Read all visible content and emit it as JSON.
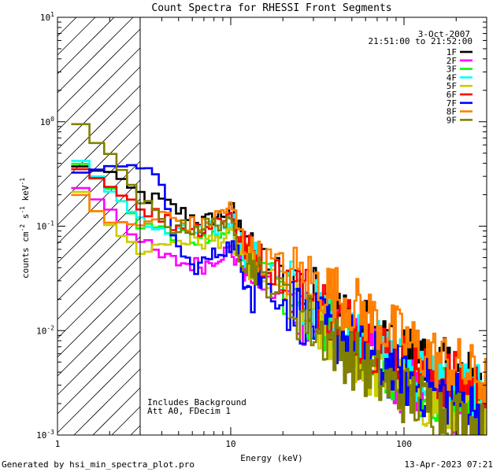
{
  "chart_data": {
    "type": "line",
    "title": "Count Spectra for RHESSI Front Segments",
    "xlabel": "Energy (keV)",
    "ylabel": "counts cm-2 s-1 keV-1",
    "xscale": "log",
    "yscale": "log",
    "xlim": [
      1,
      300
    ],
    "ylim": [
      0.001,
      10
    ],
    "x_ticks": [
      {
        "value": 1,
        "label": "1"
      },
      {
        "value": 10,
        "label": "10"
      },
      {
        "value": 100,
        "label": "100"
      }
    ],
    "y_ticks": [
      {
        "value": 0.001,
        "base": "10",
        "exp": "-3"
      },
      {
        "value": 0.01,
        "base": "10",
        "exp": "-2"
      },
      {
        "value": 0.1,
        "base": "10",
        "exp": "-1"
      },
      {
        "value": 1,
        "base": "10",
        "exp": "0"
      },
      {
        "value": 10,
        "base": "10",
        "exp": "1"
      }
    ],
    "date": "3-Oct-2007",
    "time_range": "21:51:00 to 21:52:00",
    "excluded_below_kev": 3,
    "annotation_lines": [
      "Includes Background",
      "Att A0, FDecim 1"
    ],
    "legend_position": "top-right",
    "series": [
      {
        "name": "1F",
        "color": "#000000",
        "points": [
          [
            1.2,
            0.38
          ],
          [
            2,
            0.33
          ],
          [
            3,
            0.2
          ],
          [
            4,
            0.17
          ],
          [
            5,
            0.14
          ],
          [
            7,
            0.11
          ],
          [
            9,
            0.13
          ],
          [
            10,
            0.14
          ],
          [
            12,
            0.07
          ],
          [
            15,
            0.05
          ],
          [
            20,
            0.035
          ],
          [
            30,
            0.022
          ],
          [
            50,
            0.012
          ],
          [
            70,
            0.009
          ],
          [
            100,
            0.006
          ],
          [
            150,
            0.0045
          ],
          [
            200,
            0.004
          ],
          [
            250,
            0.0033
          ],
          [
            300,
            0.0028
          ]
        ],
        "spike": [
          12.5,
          0.08
        ]
      },
      {
        "name": "2F",
        "color": "#ff00ff",
        "points": [
          [
            1.2,
            0.27
          ],
          [
            2,
            0.15
          ],
          [
            3,
            0.07
          ],
          [
            4,
            0.05
          ],
          [
            5,
            0.045
          ],
          [
            7,
            0.042
          ],
          [
            9,
            0.055
          ],
          [
            10,
            0.06
          ],
          [
            12,
            0.04
          ],
          [
            15,
            0.03
          ],
          [
            20,
            0.02
          ],
          [
            30,
            0.012
          ],
          [
            50,
            0.007
          ],
          [
            70,
            0.005
          ],
          [
            100,
            0.003
          ],
          [
            150,
            0.0022
          ],
          [
            200,
            0.0018
          ],
          [
            250,
            0.0013
          ],
          [
            300,
            0.001
          ]
        ]
      },
      {
        "name": "3F",
        "color": "#00ff00",
        "points": [
          [
            1.2,
            0.45
          ],
          [
            2,
            0.23
          ],
          [
            3,
            0.11
          ],
          [
            4,
            0.09
          ],
          [
            5,
            0.085
          ],
          [
            7,
            0.07
          ],
          [
            9,
            0.08
          ],
          [
            10,
            0.09
          ],
          [
            12,
            0.055
          ],
          [
            15,
            0.04
          ],
          [
            20,
            0.025
          ],
          [
            30,
            0.014
          ],
          [
            50,
            0.008
          ],
          [
            70,
            0.005
          ],
          [
            100,
            0.0035
          ],
          [
            150,
            0.0026
          ],
          [
            200,
            0.0022
          ],
          [
            250,
            0.0018
          ],
          [
            300,
            0.0015
          ]
        ]
      },
      {
        "name": "4F",
        "color": "#00ffff",
        "points": [
          [
            1.2,
            0.5
          ],
          [
            2,
            0.22
          ],
          [
            3,
            0.12
          ],
          [
            4,
            0.085
          ],
          [
            5,
            0.085
          ],
          [
            7,
            0.09
          ],
          [
            9,
            0.1
          ],
          [
            10,
            0.11
          ],
          [
            12,
            0.06
          ],
          [
            15,
            0.045
          ],
          [
            20,
            0.03
          ],
          [
            30,
            0.017
          ],
          [
            50,
            0.01
          ],
          [
            70,
            0.0065
          ],
          [
            100,
            0.0045
          ],
          [
            150,
            0.0035
          ],
          [
            200,
            0.003
          ],
          [
            250,
            0.0025
          ],
          [
            300,
            0.0021
          ]
        ]
      },
      {
        "name": "5F",
        "color": "#cccc00",
        "points": [
          [
            1.2,
            0.28
          ],
          [
            2,
            0.1
          ],
          [
            3,
            0.06
          ],
          [
            4,
            0.065
          ],
          [
            5,
            0.075
          ],
          [
            7,
            0.07
          ],
          [
            9,
            0.075
          ],
          [
            10,
            0.08
          ],
          [
            12,
            0.05
          ],
          [
            15,
            0.035
          ],
          [
            20,
            0.022
          ],
          [
            30,
            0.012
          ],
          [
            50,
            0.006
          ],
          [
            70,
            0.004
          ],
          [
            100,
            0.0028
          ],
          [
            150,
            0.002
          ],
          [
            200,
            0.0016
          ],
          [
            250,
            0.0013
          ],
          [
            300,
            0.0011
          ]
        ]
      },
      {
        "name": "6F",
        "color": "#ff0000",
        "points": [
          [
            1.2,
            0.42
          ],
          [
            2,
            0.24
          ],
          [
            3,
            0.16
          ],
          [
            4,
            0.12
          ],
          [
            5,
            0.1
          ],
          [
            7,
            0.095
          ],
          [
            9,
            0.12
          ],
          [
            10,
            0.13
          ],
          [
            12,
            0.065
          ],
          [
            15,
            0.048
          ],
          [
            20,
            0.032
          ],
          [
            30,
            0.02
          ],
          [
            50,
            0.011
          ],
          [
            70,
            0.007
          ],
          [
            100,
            0.005
          ],
          [
            150,
            0.0038
          ],
          [
            200,
            0.0032
          ],
          [
            250,
            0.0028
          ],
          [
            300,
            0.0024
          ]
        ]
      },
      {
        "name": "7F",
        "color": "#0000ff",
        "points": [
          [
            1.2,
            0.3
          ],
          [
            2,
            0.36
          ],
          [
            3,
            0.41
          ],
          [
            4,
            0.22
          ],
          [
            5,
            0.06
          ],
          [
            6,
            0.04
          ],
          [
            7,
            0.045
          ],
          [
            9,
            0.06
          ],
          [
            10,
            0.065
          ],
          [
            12,
            0.035
          ],
          [
            15,
            0.03
          ],
          [
            20,
            0.02
          ],
          [
            30,
            0.012
          ],
          [
            50,
            0.0075
          ],
          [
            70,
            0.005
          ],
          [
            100,
            0.0035
          ],
          [
            150,
            0.0026
          ],
          [
            200,
            0.0022
          ],
          [
            250,
            0.0018
          ],
          [
            300,
            0.0015
          ]
        ],
        "spike": [
          13.5,
          0.015
        ]
      },
      {
        "name": "8F",
        "color": "#ff8000",
        "points": [
          [
            1.2,
            0.24
          ],
          [
            2,
            0.11
          ],
          [
            3,
            0.1
          ],
          [
            4,
            0.13
          ],
          [
            5,
            0.11
          ],
          [
            7,
            0.1
          ],
          [
            9,
            0.14
          ],
          [
            10,
            0.15
          ],
          [
            12,
            0.065
          ],
          [
            15,
            0.05
          ],
          [
            20,
            0.04
          ],
          [
            30,
            0.03
          ],
          [
            50,
            0.018
          ],
          [
            70,
            0.012
          ],
          [
            100,
            0.008
          ],
          [
            150,
            0.0055
          ],
          [
            200,
            0.0045
          ],
          [
            250,
            0.0038
          ],
          [
            300,
            0.0032
          ]
        ]
      },
      {
        "name": "9F",
        "color": "#808000",
        "points": [
          [
            1.2,
            1.1
          ],
          [
            2,
            0.5
          ],
          [
            3,
            0.18
          ],
          [
            4,
            0.11
          ],
          [
            5,
            0.095
          ],
          [
            7,
            0.1
          ],
          [
            9,
            0.11
          ],
          [
            10,
            0.1
          ],
          [
            12,
            0.05
          ],
          [
            15,
            0.035
          ],
          [
            20,
            0.022
          ],
          [
            30,
            0.011
          ],
          [
            50,
            0.0055
          ],
          [
            70,
            0.0035
          ],
          [
            100,
            0.0025
          ],
          [
            150,
            0.0018
          ],
          [
            200,
            0.0015
          ],
          [
            250,
            0.0012
          ],
          [
            300,
            0.001
          ]
        ]
      }
    ]
  },
  "footer": {
    "generated_by": "Generated by hsi_min_spectra_plot.pro",
    "created": "13-Apr-2023 07:21"
  }
}
